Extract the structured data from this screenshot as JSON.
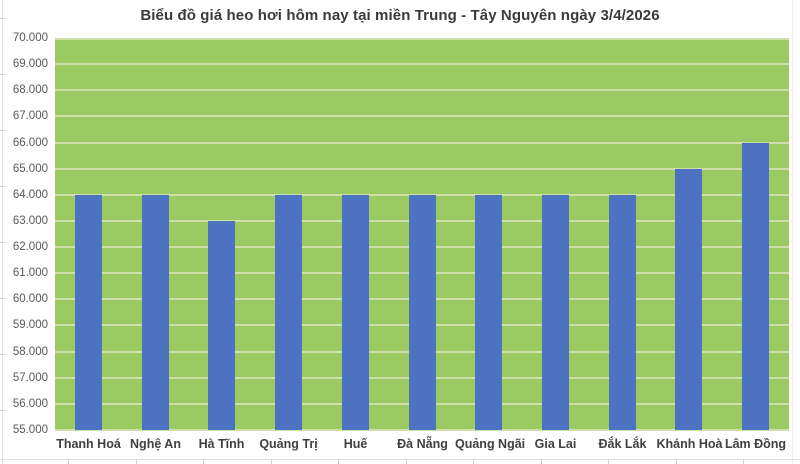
{
  "chart_data": {
    "type": "bar",
    "title": "Biểu đồ giá heo hơi hôm nay tại miền Trung - Tây Nguyên ngày 3/4/2026",
    "categories": [
      "Thanh Hoá",
      "Nghệ An",
      "Hà Tĩnh",
      "Quảng Trị",
      "Huế",
      "Đà Nẵng",
      "Quảng Ngãi",
      "Gia Lai",
      "Đắk Lắk",
      "Khánh Hoà",
      "Lâm Đồng"
    ],
    "values": [
      64000,
      64000,
      63000,
      64000,
      64000,
      64000,
      64000,
      64000,
      64000,
      65000,
      66000
    ],
    "xlabel": "",
    "ylabel": "",
    "ylim": [
      55000,
      70000
    ],
    "ytick_step": 1000,
    "ytick_labels": [
      "55.000",
      "56.000",
      "57.000",
      "58.000",
      "59.000",
      "60.000",
      "61.000",
      "62.000",
      "63.000",
      "64.000",
      "65.000",
      "66.000",
      "67.000",
      "68.000",
      "69.000",
      "70.000"
    ],
    "grid": true,
    "legend": "none",
    "colors": {
      "bar": "#4C72C1",
      "plot_background": "#9BCA62",
      "gridline": "#CDE0A8",
      "title_text": "#3A3A3A",
      "y_tick_text": "#595959",
      "x_tick_text": "#404040",
      "page_background": "#FFFFFF"
    }
  }
}
